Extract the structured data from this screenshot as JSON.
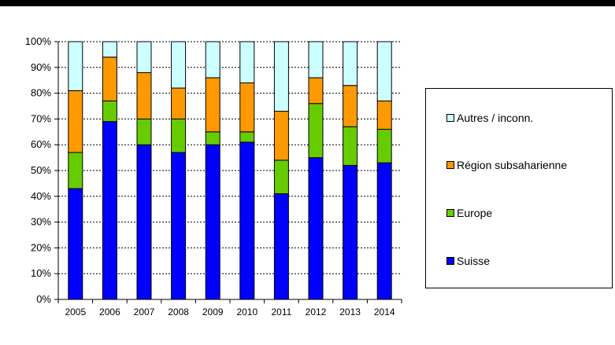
{
  "chart_data": {
    "type": "bar",
    "stacked": true,
    "percent_axis": true,
    "categories": [
      "2005",
      "2006",
      "2007",
      "2008",
      "2009",
      "2010",
      "2011",
      "2012",
      "2013",
      "2014"
    ],
    "series": [
      {
        "name": "Suisse",
        "color": "#0000FF",
        "values": [
          43,
          69,
          60,
          57,
          60,
          61,
          41,
          55,
          52,
          53
        ]
      },
      {
        "name": "Europe",
        "color": "#66CC00",
        "values": [
          14,
          8,
          10,
          13,
          5,
          4,
          13,
          21,
          15,
          13
        ]
      },
      {
        "name": "Région subsaharienne",
        "color": "#FF9900",
        "values": [
          24,
          17,
          18,
          12,
          21,
          19,
          19,
          10,
          16,
          11
        ]
      },
      {
        "name": "Autres / inconn.",
        "color": "#CCFFFF",
        "values": [
          19,
          6,
          12,
          18,
          14,
          16,
          27,
          14,
          17,
          23
        ]
      }
    ],
    "ylim": [
      0,
      100
    ],
    "yticks": [
      "0%",
      "10%",
      "20%",
      "30%",
      "40%",
      "50%",
      "60%",
      "70%",
      "80%",
      "90%",
      "100%"
    ],
    "grid": true,
    "legend_position": "right",
    "legend_order": [
      "Autres / inconn.",
      "Région subsaharienne",
      "Europe",
      "Suisse"
    ]
  }
}
